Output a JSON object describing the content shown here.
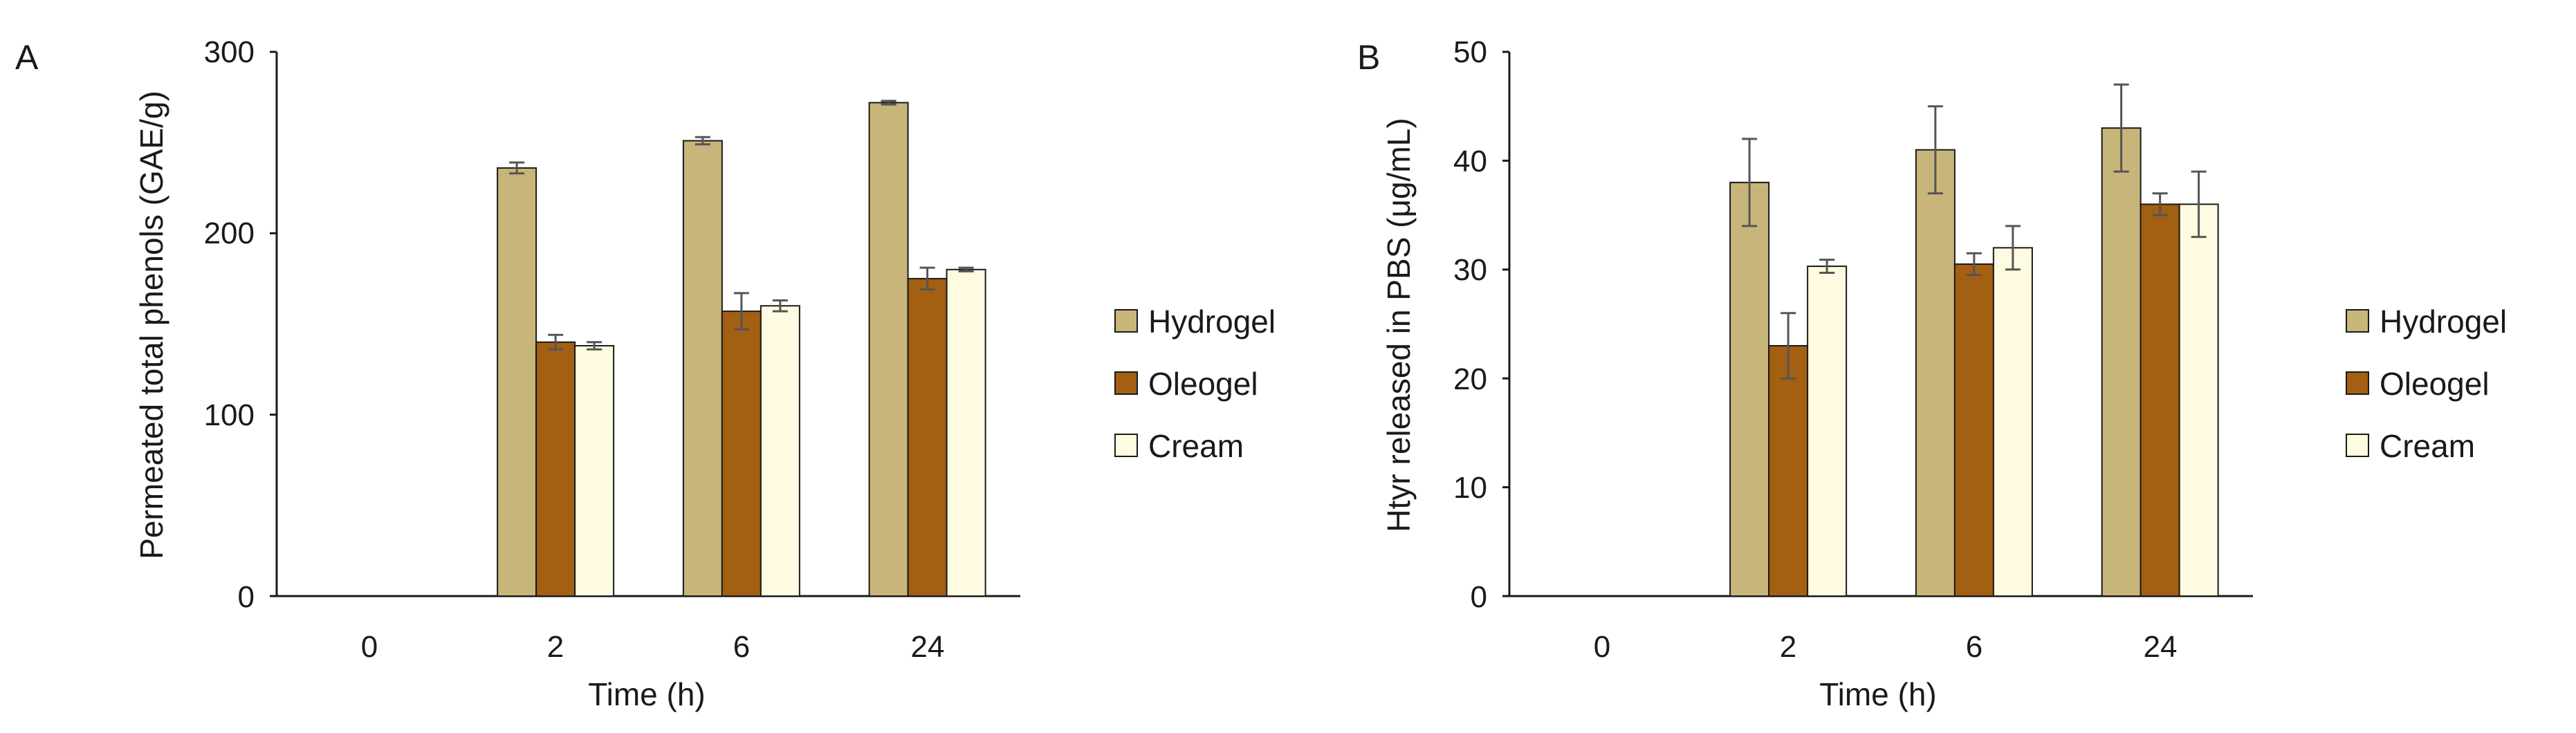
{
  "colors": {
    "Hydrogel": "#c8b57a",
    "Oleogel": "#a35f12",
    "Cream": "#fffbe0",
    "bar_stroke": "#1a1a1a",
    "axis": "#1a1a1a",
    "error_bar": "#555555"
  },
  "chart_data": [
    {
      "panel": "A",
      "type": "bar",
      "title": "",
      "xlabel": "Time (h)",
      "ylabel": "Permeated total phenols (GAE/g)",
      "categories": [
        "0",
        "2",
        "6",
        "24"
      ],
      "ylim": [
        0,
        300
      ],
      "yticks": [
        0,
        100,
        200,
        300
      ],
      "grid": false,
      "legend": "right",
      "series": [
        {
          "name": "Hydrogel",
          "values": [
            0,
            236,
            251,
            272
          ],
          "errors": [
            0,
            3,
            2,
            1
          ]
        },
        {
          "name": "Oleogel",
          "values": [
            0,
            140,
            157,
            175
          ],
          "errors": [
            0,
            4,
            10,
            6
          ]
        },
        {
          "name": "Cream",
          "values": [
            0,
            138,
            160,
            180
          ],
          "errors": [
            0,
            2,
            3,
            1
          ]
        }
      ]
    },
    {
      "panel": "B",
      "type": "bar",
      "title": "",
      "xlabel": "Time (h)",
      "ylabel": "Htyr released in PBS (μg/mL)",
      "categories": [
        "0",
        "2",
        "6",
        "24"
      ],
      "ylim": [
        0,
        50
      ],
      "yticks": [
        0,
        10,
        20,
        30,
        40,
        50
      ],
      "grid": false,
      "legend": "right",
      "series": [
        {
          "name": "Hydrogel",
          "values": [
            0,
            38,
            41,
            43
          ],
          "errors": [
            0,
            4,
            4,
            4
          ]
        },
        {
          "name": "Oleogel",
          "values": [
            0,
            23,
            30.5,
            36
          ],
          "errors": [
            0,
            3,
            1,
            1
          ]
        },
        {
          "name": "Cream",
          "values": [
            0,
            30.3,
            32,
            36
          ],
          "errors": [
            0,
            0.6,
            2,
            3
          ]
        }
      ]
    }
  ]
}
